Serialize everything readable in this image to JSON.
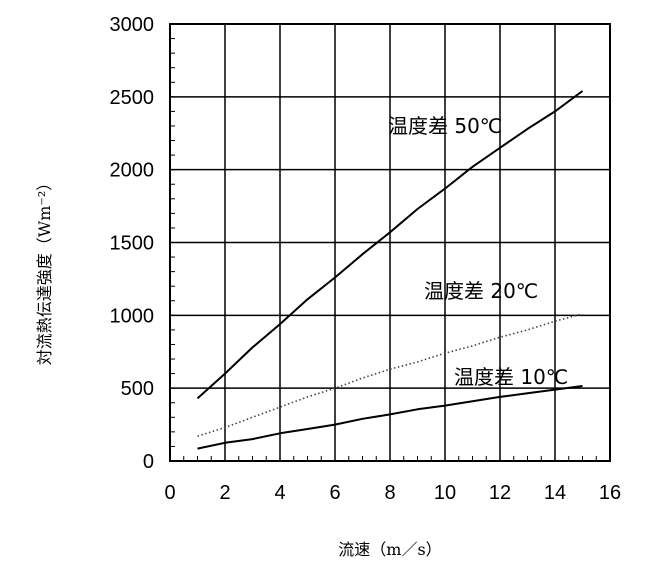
{
  "chart_data": {
    "type": "line",
    "title": "",
    "xlabel": "流速（m／s）",
    "ylabel": "対流熱伝達強度（Wm⁻²）",
    "xlim": [
      0,
      16
    ],
    "ylim": [
      0,
      3000
    ],
    "x_ticks": [
      0,
      2,
      4,
      6,
      8,
      10,
      12,
      14,
      16
    ],
    "y_ticks": [
      0,
      500,
      1000,
      1500,
      2000,
      2500,
      3000
    ],
    "grid": true,
    "series": [
      {
        "name": "温度差 50℃",
        "style": "solid",
        "color": "#000000",
        "x": [
          1,
          2,
          3,
          4,
          5,
          6,
          7,
          8,
          9,
          10,
          11,
          12,
          13,
          14,
          15
        ],
        "y": [
          430,
          600,
          780,
          940,
          1110,
          1260,
          1420,
          1570,
          1730,
          1870,
          2020,
          2150,
          2280,
          2400,
          2540
        ]
      },
      {
        "name": "温度差 20℃",
        "style": "dotted",
        "color": "#444444",
        "x": [
          1,
          2,
          3,
          4,
          5,
          6,
          7,
          8,
          9,
          10,
          11,
          12,
          13,
          14,
          15
        ],
        "y": [
          170,
          230,
          300,
          370,
          440,
          500,
          570,
          630,
          680,
          740,
          790,
          850,
          900,
          960,
          1010
        ]
      },
      {
        "name": "温度差 10℃",
        "style": "solid",
        "color": "#000000",
        "x": [
          1,
          2,
          3,
          4,
          5,
          6,
          7,
          8,
          9,
          10,
          11,
          12,
          13,
          14,
          15
        ],
        "y": [
          85,
          125,
          150,
          190,
          220,
          250,
          290,
          320,
          355,
          380,
          410,
          440,
          465,
          490,
          515
        ]
      }
    ]
  }
}
